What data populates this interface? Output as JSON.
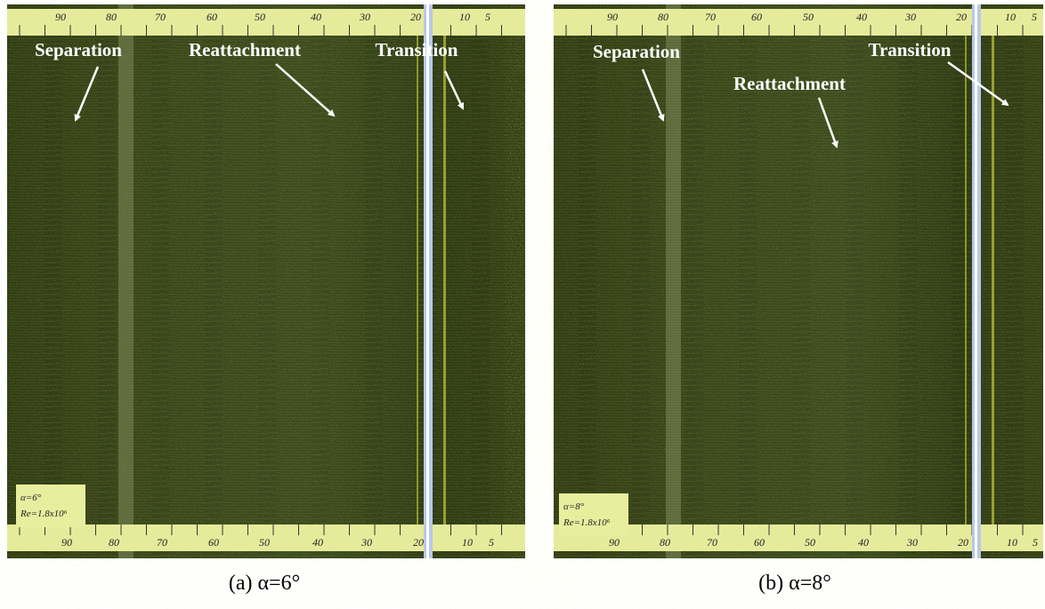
{
  "panels": [
    {
      "annotations": [
        "Separation",
        "Reattachment",
        "Transition"
      ],
      "card": [
        "α=6°",
        "Re=1.8x10⁶"
      ],
      "caption": "(a) α=6°"
    },
    {
      "annotations": [
        "Separation",
        "Reattachment",
        "Transition"
      ],
      "card": [
        "α=8°",
        "Re=1.8x10⁶"
      ],
      "caption": "(b) α=8°"
    }
  ],
  "scale_labels": [
    "90",
    "80",
    "70",
    "60",
    "50",
    "40",
    "30",
    "20",
    "10",
    "5"
  ]
}
